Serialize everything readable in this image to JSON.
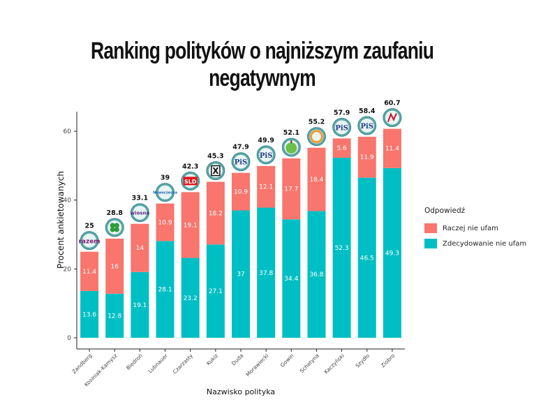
{
  "title": "Ranking polityków o najniższym zaufaniu negatywnym",
  "colors": {
    "raczej": "#f8766d",
    "zdecydowanie": "#00bfc4",
    "axis": "#222222"
  },
  "legend": {
    "title": "Odpowiedź",
    "items": [
      {
        "label": "Raczej nie ufam",
        "color": "#f8766d"
      },
      {
        "label": "Zdecydowanie nie ufam",
        "color": "#00bfc4"
      }
    ]
  },
  "chart_data": {
    "type": "bar",
    "stacked": true,
    "categories": [
      "Zandberg",
      "Kosiniak-Kamysz",
      "Biedroń",
      "Lubnauer",
      "Czarzasty",
      "Kukiz",
      "Duda",
      "Morawiecki",
      "Gowin",
      "Schetyna",
      "Kaczyński",
      "Szydło",
      "Ziobro"
    ],
    "series": [
      {
        "name": "Zdecydowanie nie ufam",
        "values": [
          13.6,
          12.8,
          19.1,
          28.1,
          23.2,
          27.1,
          37,
          37.8,
          34.4,
          36.8,
          52.3,
          46.5,
          49.3
        ]
      },
      {
        "name": "Raczej nie ufam",
        "values": [
          11.4,
          16,
          14,
          10.9,
          19.1,
          18.2,
          10.9,
          12.1,
          17.7,
          18.4,
          5.6,
          11.9,
          11.4
        ]
      }
    ],
    "totals": [
      25,
      28.8,
      33.1,
      39,
      42.3,
      45.3,
      47.9,
      49.9,
      52.1,
      55.2,
      57.9,
      58.4,
      60.7
    ],
    "party_logos": [
      "razem",
      "psl-clover",
      "wiosna",
      "nowoczesna",
      "sld",
      "kukiz",
      "pis",
      "pis",
      "green-apple",
      "po",
      "pis",
      "pis",
      "solidarna-polska"
    ],
    "logo_text": [
      "razem",
      "",
      "wiosna",
      "Nowoczesna",
      "SLD",
      "X",
      "PiS",
      "PiS",
      "",
      "",
      "PiS",
      "PiS",
      ""
    ],
    "xlabel": "Nazwisko polityka",
    "ylabel": "Procent ankietowanych",
    "yticks": [
      0,
      20,
      40,
      60
    ],
    "ylim": [
      0,
      66
    ]
  }
}
